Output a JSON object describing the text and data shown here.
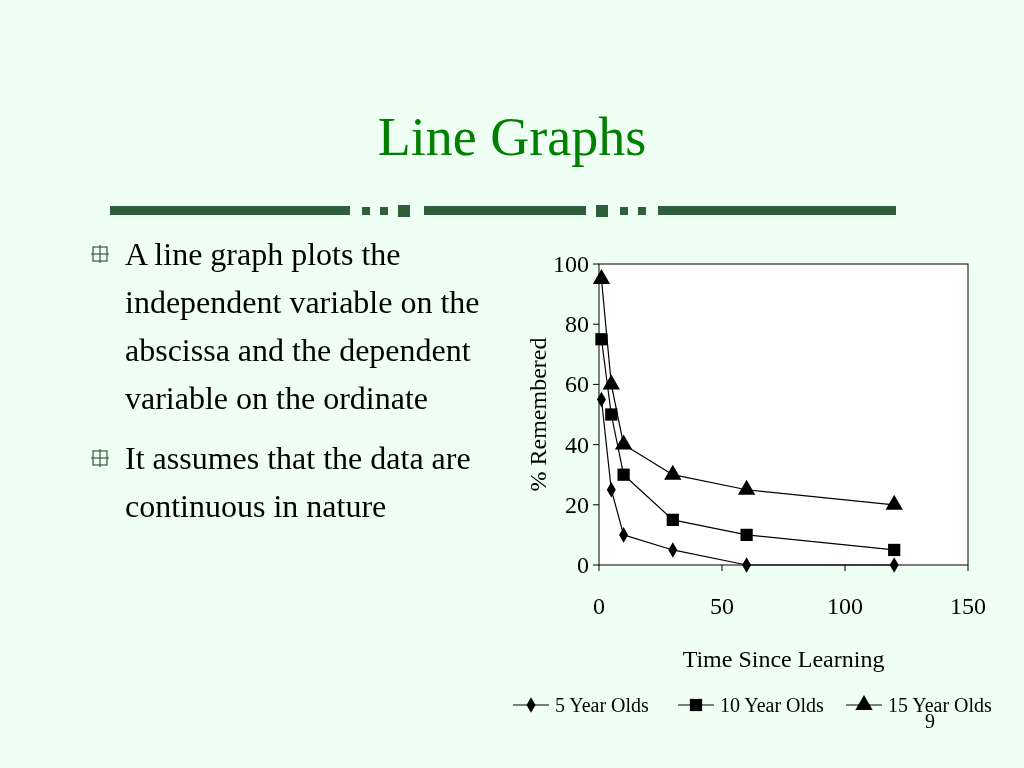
{
  "chart_data": {
    "type": "line",
    "title": "Line Graphs",
    "annotations": [
      "A line graph plots the independent variable on the abscissa and the dependent variable on the ordinate",
      "It assumes that the data are continuous in nature",
      "9"
    ],
    "xlabel": "Time Since Learning",
    "ylabel": "% Remembered",
    "x": [
      1,
      5,
      10,
      30,
      60,
      120
    ],
    "series": [
      {
        "name": "5 Year Olds",
        "color": "#000000",
        "marker": "diamond",
        "values": [
          55,
          25,
          10,
          5,
          0,
          0
        ]
      },
      {
        "name": "10 Year Olds",
        "color": "#000000",
        "marker": "square",
        "values": [
          75,
          50,
          30,
          15,
          10,
          5
        ]
      },
      {
        "name": "15 Year Olds",
        "color": "#000000",
        "marker": "triangle",
        "values": [
          95,
          60,
          40,
          30,
          25,
          20
        ]
      }
    ],
    "xlim": [
      0,
      150
    ],
    "xticks": [
      0,
      50,
      100,
      150
    ],
    "ylim": [
      0,
      100
    ],
    "yticks": [
      0,
      20,
      40,
      60,
      80,
      100
    ],
    "grid": false,
    "legend": "bottom",
    "line_style": "solid"
  }
}
